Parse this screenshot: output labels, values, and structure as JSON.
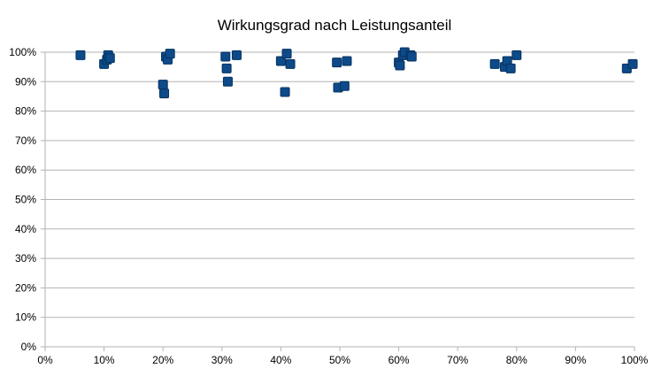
{
  "chart_data": {
    "type": "scatter",
    "title": "Wirkungsgrad nach Leistungsanteil",
    "xlabel": "",
    "ylabel": "",
    "xlim": [
      0,
      1
    ],
    "ylim": [
      0,
      1
    ],
    "x_ticks": [
      "0%",
      "10%",
      "20%",
      "30%",
      "40%",
      "50%",
      "60%",
      "70%",
      "80%",
      "90%",
      "100%"
    ],
    "y_ticks": [
      "0%",
      "10%",
      "20%",
      "30%",
      "40%",
      "50%",
      "60%",
      "70%",
      "80%",
      "90%",
      "100%"
    ],
    "grid": "horizontal",
    "legend": "none",
    "marker_color": "#0d4a8a",
    "marker_edge_color": "#06325f",
    "series": [
      {
        "points": [
          [
            0.06,
            0.99
          ],
          [
            0.1,
            0.96
          ],
          [
            0.105,
            0.975
          ],
          [
            0.107,
            0.99
          ],
          [
            0.11,
            0.98
          ],
          [
            0.2,
            0.89
          ],
          [
            0.202,
            0.86
          ],
          [
            0.205,
            0.985
          ],
          [
            0.208,
            0.975
          ],
          [
            0.212,
            0.995
          ],
          [
            0.306,
            0.985
          ],
          [
            0.308,
            0.945
          ],
          [
            0.31,
            0.9
          ],
          [
            0.325,
            0.99
          ],
          [
            0.4,
            0.97
          ],
          [
            0.407,
            0.865
          ],
          [
            0.41,
            0.995
          ],
          [
            0.416,
            0.96
          ],
          [
            0.495,
            0.965
          ],
          [
            0.497,
            0.88
          ],
          [
            0.508,
            0.885
          ],
          [
            0.512,
            0.97
          ],
          [
            0.6,
            0.965
          ],
          [
            0.602,
            0.955
          ],
          [
            0.607,
            0.99
          ],
          [
            0.61,
            1.0
          ],
          [
            0.62,
            0.99
          ],
          [
            0.622,
            0.985
          ],
          [
            0.763,
            0.96
          ],
          [
            0.78,
            0.95
          ],
          [
            0.784,
            0.97
          ],
          [
            0.79,
            0.945
          ],
          [
            0.8,
            0.99
          ],
          [
            0.987,
            0.945
          ],
          [
            0.997,
            0.96
          ]
        ]
      }
    ]
  }
}
